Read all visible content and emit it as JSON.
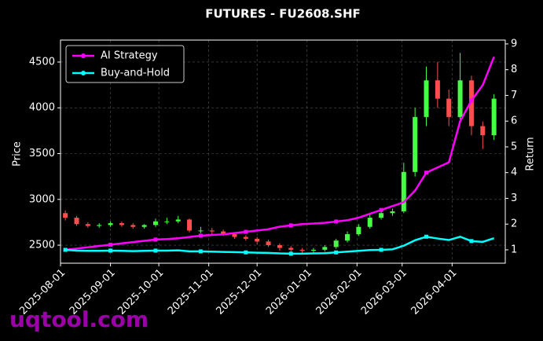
{
  "chart_data": {
    "type": "candlestick",
    "title": "FUTURES - FU2608.SHF",
    "y_label": "Price",
    "y2_label": "Return",
    "watermark": "uqtool.com",
    "x": [
      "2025-08-04",
      "2025-08-11",
      "2025-08-18",
      "2025-08-25",
      "2025-09-01",
      "2025-09-08",
      "2025-09-15",
      "2025-09-22",
      "2025-09-29",
      "2025-10-06",
      "2025-10-13",
      "2025-10-20",
      "2025-10-27",
      "2025-11-03",
      "2025-11-10",
      "2025-11-17",
      "2025-11-24",
      "2025-12-01",
      "2025-12-08",
      "2025-12-15",
      "2025-12-22",
      "2025-12-29",
      "2026-01-05",
      "2026-01-12",
      "2026-01-19",
      "2026-01-26",
      "2026-02-02",
      "2026-02-09",
      "2026-02-16",
      "2026-02-23",
      "2026-03-02",
      "2026-03-09",
      "2026-03-16",
      "2026-03-23",
      "2026-03-30",
      "2026-04-06",
      "2026-04-13",
      "2026-04-20",
      "2026-04-27"
    ],
    "open": [
      2850,
      2800,
      2730,
      2710,
      2720,
      2740,
      2720,
      2700,
      2720,
      2760,
      2760,
      2780,
      2660,
      2660,
      2650,
      2620,
      2590,
      2570,
      2540,
      2500,
      2470,
      2450,
      2440,
      2450,
      2480,
      2550,
      2620,
      2700,
      2800,
      2850,
      2870,
      3300,
      3900,
      4300,
      4100,
      3900,
      4300,
      3800,
      3700
    ],
    "high": [
      2880,
      2820,
      2750,
      2740,
      2760,
      2760,
      2740,
      2730,
      2790,
      2800,
      2820,
      2790,
      2700,
      2690,
      2670,
      2640,
      2610,
      2590,
      2560,
      2520,
      2490,
      2470,
      2470,
      2500,
      2570,
      2650,
      2730,
      2840,
      2880,
      2900,
      3400,
      4000,
      4450,
      4500,
      4200,
      4600,
      4350,
      3850,
      4150
    ],
    "low": [
      2770,
      2710,
      2690,
      2690,
      2700,
      2700,
      2680,
      2680,
      2700,
      2730,
      2740,
      2640,
      2630,
      2620,
      2600,
      2570,
      2550,
      2510,
      2480,
      2440,
      2420,
      2410,
      2420,
      2430,
      2460,
      2530,
      2600,
      2680,
      2780,
      2820,
      2850,
      3250,
      3800,
      4000,
      3800,
      3850,
      3700,
      3550,
      3650
    ],
    "close": [
      2800,
      2730,
      2710,
      2720,
      2740,
      2720,
      2700,
      2720,
      2760,
      2760,
      2780,
      2660,
      2660,
      2650,
      2620,
      2590,
      2570,
      2540,
      2500,
      2470,
      2450,
      2440,
      2450,
      2480,
      2550,
      2620,
      2700,
      2800,
      2850,
      2870,
      3300,
      3900,
      4300,
      4100,
      3900,
      4300,
      3800,
      3700,
      4100
    ],
    "up_color": "#44ff44",
    "down_color": "#ff4d4d",
    "series": [
      {
        "name": "AI Strategy",
        "color": "#ff00ff",
        "axis": "y2",
        "values": [
          1.0,
          1.05,
          1.1,
          1.15,
          1.2,
          1.25,
          1.3,
          1.35,
          1.4,
          1.42,
          1.45,
          1.5,
          1.55,
          1.58,
          1.6,
          1.65,
          1.7,
          1.75,
          1.8,
          1.9,
          1.95,
          2.0,
          2.02,
          2.05,
          2.1,
          2.15,
          2.25,
          2.4,
          2.55,
          2.7,
          2.85,
          3.3,
          4.0,
          4.2,
          4.4,
          6.0,
          6.8,
          7.4,
          8.5
        ]
      },
      {
        "name": "Buy-and-Hold",
        "color": "#00ffff",
        "axis": "y2",
        "values": [
          1.0,
          0.97,
          0.96,
          0.96,
          0.97,
          0.96,
          0.95,
          0.96,
          0.97,
          0.97,
          0.98,
          0.94,
          0.94,
          0.93,
          0.92,
          0.91,
          0.9,
          0.89,
          0.88,
          0.86,
          0.85,
          0.85,
          0.86,
          0.87,
          0.9,
          0.93,
          0.96,
          0.99,
          1.0,
          1.02,
          1.16,
          1.37,
          1.51,
          1.44,
          1.38,
          1.51,
          1.34,
          1.31,
          1.45
        ]
      }
    ],
    "xlim": [
      "2025-08-01",
      "2026-05-04"
    ],
    "xticks": [
      "2025-08-01",
      "2025-09-01",
      "2025-10-01",
      "2025-11-01",
      "2025-12-01",
      "2026-01-01",
      "2026-02-01",
      "2026-03-01",
      "2026-04-01"
    ],
    "ylim": [
      2303,
      4740
    ],
    "yticks": [
      2500,
      3000,
      3500,
      4000,
      4500
    ],
    "y2lim": [
      0.48,
      9.15
    ],
    "y2ticks": [
      1,
      2,
      3,
      4,
      5,
      6,
      7,
      8,
      9
    ],
    "grid": true,
    "legend": "upper left"
  }
}
